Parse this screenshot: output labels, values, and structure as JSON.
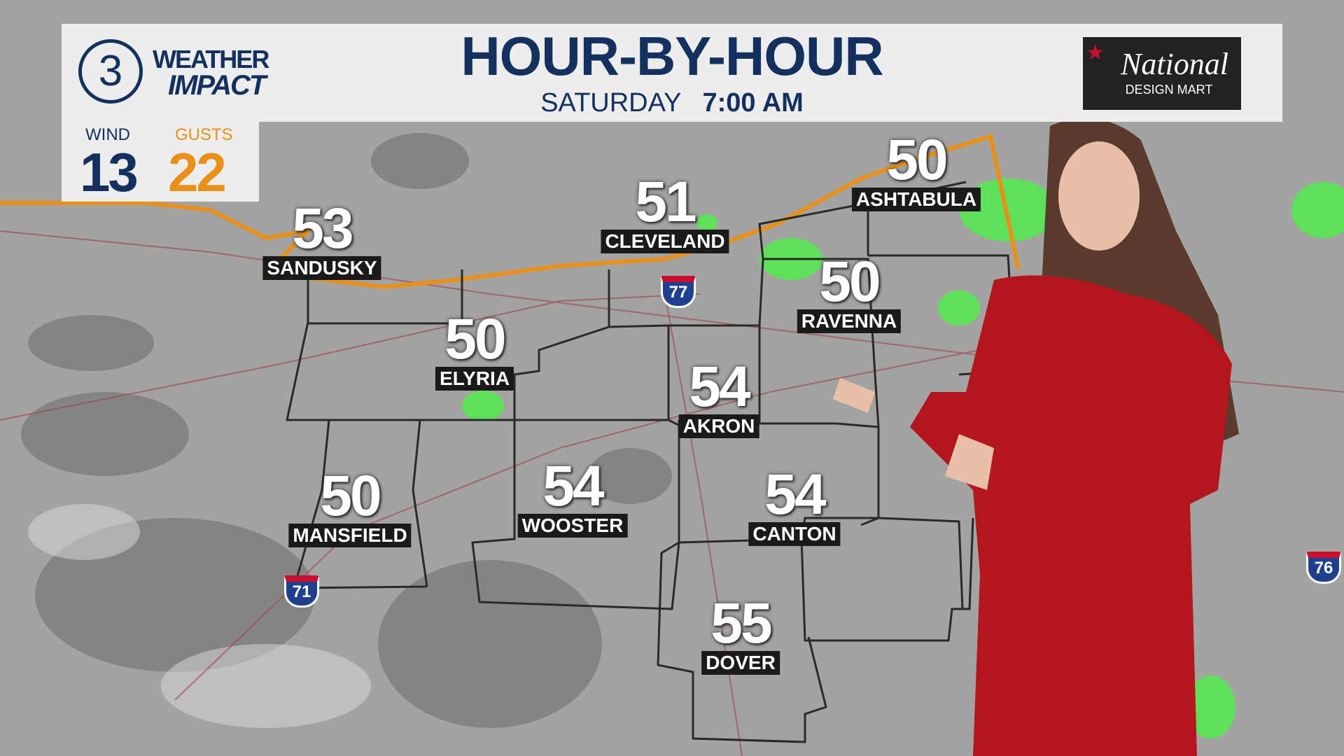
{
  "header": {
    "station_number": "3",
    "brand_line1": "WEATHER",
    "brand_line2": "IMPACT",
    "title": "HOUR-BY-HOUR",
    "day": "SATURDAY",
    "time": "7:00 AM"
  },
  "sponsor": {
    "name": "National",
    "tagline": "DESIGN MART",
    "accent": "#c8102e"
  },
  "wind": {
    "wind_label": "WIND",
    "wind_value": "13",
    "gusts_label": "GUSTS",
    "gusts_value": "22",
    "wind_color": "#13305e",
    "gusts_color": "#e8901a"
  },
  "cities": [
    {
      "name": "SANDUSKY",
      "temp": "53"
    },
    {
      "name": "CLEVELAND",
      "temp": "51"
    },
    {
      "name": "ASHTABULA",
      "temp": "50"
    },
    {
      "name": "RAVENNA",
      "temp": "50"
    },
    {
      "name": "ELYRIA",
      "temp": "50"
    },
    {
      "name": "AKRON",
      "temp": "54"
    },
    {
      "name": "MANSFIELD",
      "temp": "50"
    },
    {
      "name": "WOOSTER",
      "temp": "54"
    },
    {
      "name": "CANTON",
      "temp": "54"
    },
    {
      "name": "DOVER",
      "temp": "55"
    }
  ],
  "interstates": [
    "77",
    "71",
    "76"
  ],
  "colors": {
    "brand_navy": "#13305e",
    "lakeshore": "#e8901a",
    "radar_green": "#5fe05a"
  }
}
